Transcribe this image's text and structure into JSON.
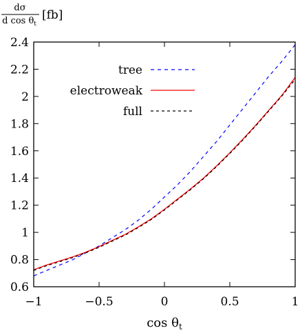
{
  "chart_data": {
    "type": "line",
    "title": "",
    "ylabel_numerator": "dσ",
    "ylabel_denominator": "d cos θ",
    "ylabel_denominator_sub": "t",
    "ylabel_unit": "[fb]",
    "xlabel_main": "cos θ",
    "xlabel_sub": "t",
    "xlim": [
      -1,
      1
    ],
    "ylim": [
      0.6,
      2.4
    ],
    "xticks": [
      -1,
      -0.5,
      0,
      0.5,
      1
    ],
    "xtick_labels": [
      "−1",
      "−0.5",
      "0",
      "0.5",
      "1"
    ],
    "yticks": [
      0.6,
      0.8,
      1.0,
      1.2,
      1.4,
      1.6,
      1.8,
      2.0,
      2.2,
      2.4
    ],
    "ytick_labels": [
      "0.6",
      "0.8",
      "1",
      "1.2",
      "1.4",
      "1.6",
      "1.8",
      "2",
      "2.2",
      "2.4"
    ],
    "grid": false,
    "legend_position": "top-center",
    "series": [
      {
        "name": "tree",
        "style": "dotted",
        "color": "#0000ff",
        "x": [
          -1,
          -0.9,
          -0.8,
          -0.7,
          -0.6,
          -0.5,
          -0.4,
          -0.3,
          -0.2,
          -0.1,
          0,
          0.1,
          0.2,
          0.3,
          0.4,
          0.5,
          0.6,
          0.7,
          0.8,
          0.9,
          1
        ],
        "y": [
          0.68,
          0.72,
          0.76,
          0.8,
          0.85,
          0.9,
          0.96,
          1.02,
          1.09,
          1.17,
          1.26,
          1.35,
          1.45,
          1.56,
          1.67,
          1.79,
          1.91,
          2.03,
          2.15,
          2.26,
          2.38
        ]
      },
      {
        "name": "electroweak",
        "style": "solid",
        "color": "#ff0000",
        "x": [
          -1,
          -0.9,
          -0.8,
          -0.7,
          -0.6,
          -0.5,
          -0.4,
          -0.3,
          -0.2,
          -0.1,
          0,
          0.1,
          0.2,
          0.3,
          0.4,
          0.5,
          0.6,
          0.7,
          0.8,
          0.9,
          1
        ],
        "y": [
          0.725,
          0.76,
          0.79,
          0.82,
          0.855,
          0.895,
          0.94,
          0.985,
          1.04,
          1.1,
          1.17,
          1.245,
          1.32,
          1.4,
          1.49,
          1.585,
          1.685,
          1.79,
          1.9,
          2.01,
          2.14
        ]
      },
      {
        "name": "full",
        "style": "dashed",
        "color": "#000000",
        "x": [
          -1,
          -0.9,
          -0.8,
          -0.7,
          -0.6,
          -0.5,
          -0.4,
          -0.3,
          -0.2,
          -0.1,
          0,
          0.1,
          0.2,
          0.3,
          0.4,
          0.5,
          0.6,
          0.7,
          0.8,
          0.9,
          1
        ],
        "y": [
          0.72,
          0.755,
          0.785,
          0.815,
          0.85,
          0.89,
          0.935,
          0.98,
          1.035,
          1.095,
          1.165,
          1.24,
          1.315,
          1.395,
          1.485,
          1.58,
          1.68,
          1.785,
          1.895,
          2.005,
          2.125
        ]
      }
    ]
  }
}
